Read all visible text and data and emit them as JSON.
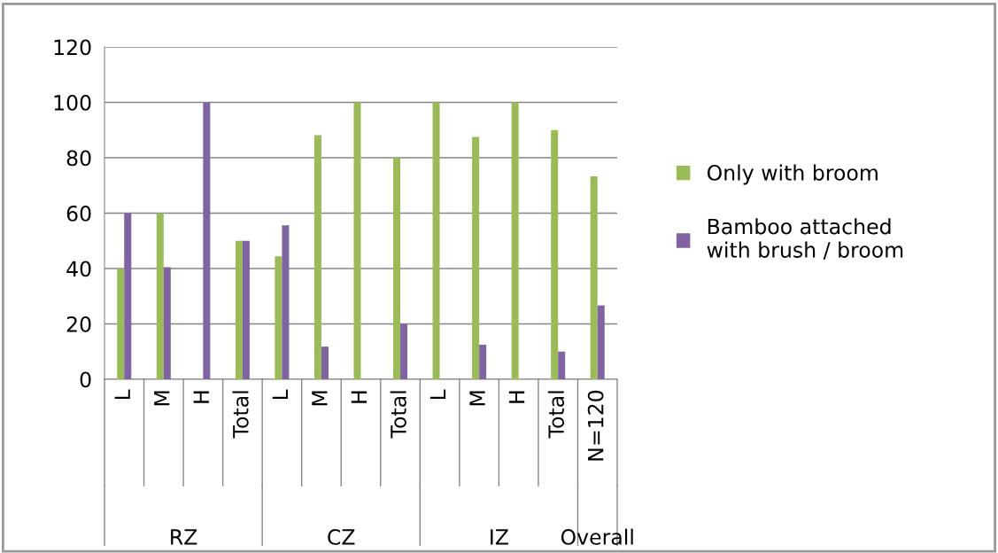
{
  "chart_data": {
    "type": "bar",
    "categories": [
      "L",
      "M",
      "H",
      "Total",
      "L",
      "M",
      "H",
      "Total",
      "L",
      "M",
      "H",
      "Total",
      "N=120"
    ],
    "series": [
      {
        "name": "Only with broom",
        "color": "#9bbb59",
        "values": [
          40,
          60,
          0,
          50,
          44.4,
          88.2,
          100,
          80,
          100,
          87.5,
          100,
          90,
          73.3
        ]
      },
      {
        "name": "Bamboo attached with brush / broom",
        "color": "#8064a2",
        "values": [
          60,
          40.5,
          100,
          50,
          55.6,
          11.8,
          0,
          20,
          0,
          12.5,
          0,
          10,
          26.7
        ]
      }
    ],
    "annotations": [
      "RZ",
      "CZ",
      "IZ",
      "Overall"
    ],
    "ylim": [
      0,
      120
    ],
    "yticks": [
      0,
      20,
      40,
      60,
      80,
      100,
      120
    ],
    "grid": "y",
    "legend": "right"
  }
}
